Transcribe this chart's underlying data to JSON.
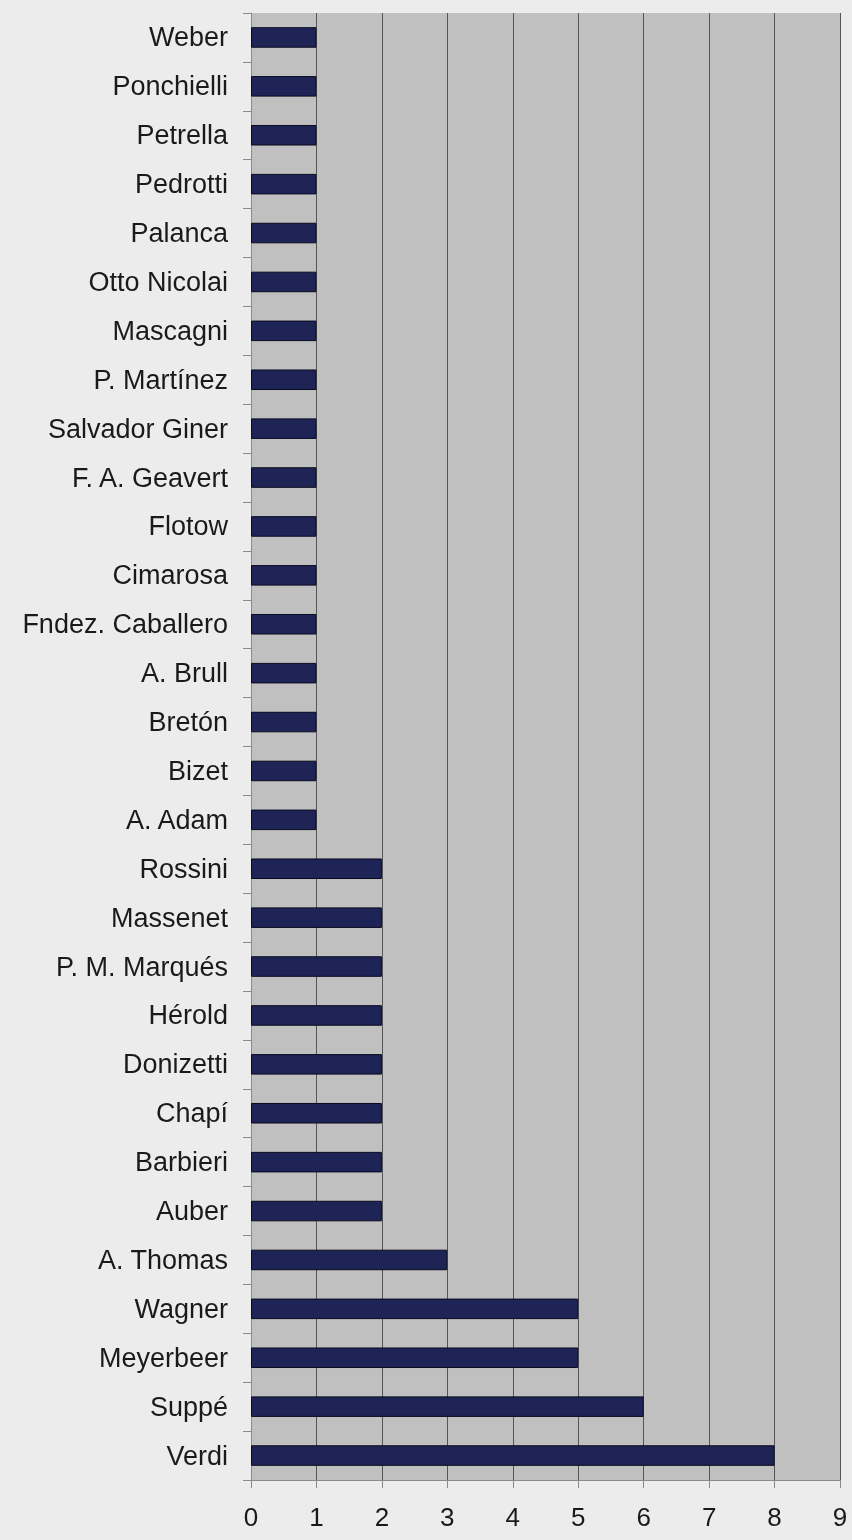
{
  "chart_data": {
    "type": "bar",
    "orientation": "horizontal",
    "categories": [
      "Weber",
      "Ponchielli",
      "Petrella",
      "Pedrotti",
      "Palanca",
      "Otto Nicolai",
      "Mascagni",
      "P. Martínez",
      "Salvador Giner",
      "F. A. Geavert",
      "Flotow",
      "Cimarosa",
      "Fndez. Caballero",
      "A. Brull",
      "Bretón",
      "Bizet",
      "A. Adam",
      "Rossini",
      "Massenet",
      "P. M. Marqués",
      "Hérold",
      "Donizetti",
      "Chapí",
      "Barbieri",
      "Auber",
      "A. Thomas",
      "Wagner",
      "Meyerbeer",
      "Suppé",
      "Verdi"
    ],
    "values": [
      1,
      1,
      1,
      1,
      1,
      1,
      1,
      1,
      1,
      1,
      1,
      1,
      1,
      1,
      1,
      1,
      1,
      2,
      2,
      2,
      2,
      2,
      2,
      2,
      2,
      3,
      5,
      5,
      6,
      8
    ],
    "color": "#1f2456",
    "xlim": [
      0,
      9
    ],
    "xticks": [
      0,
      1,
      2,
      3,
      4,
      5,
      6,
      7,
      8,
      9
    ],
    "grid": "x"
  }
}
